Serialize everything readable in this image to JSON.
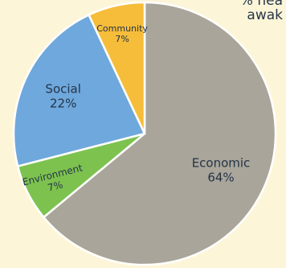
{
  "corner_text": {
    "line1": "% hea",
    "line2": "awak"
  },
  "chart_data": {
    "type": "pie",
    "slices": [
      {
        "label": "Economic",
        "value": 64,
        "display": "64%",
        "color": "#a9a59a"
      },
      {
        "label": "Environment",
        "value": 7,
        "display": "7%",
        "color": "#7dc24f"
      },
      {
        "label": "Social",
        "value": 22,
        "display": "22%",
        "color": "#6fa8dc"
      },
      {
        "label": "Community",
        "value": 7,
        "display": "7%",
        "color": "#f6bd3a"
      }
    ],
    "start_direction": "top",
    "direction": "clockwise",
    "legend": "none"
  }
}
